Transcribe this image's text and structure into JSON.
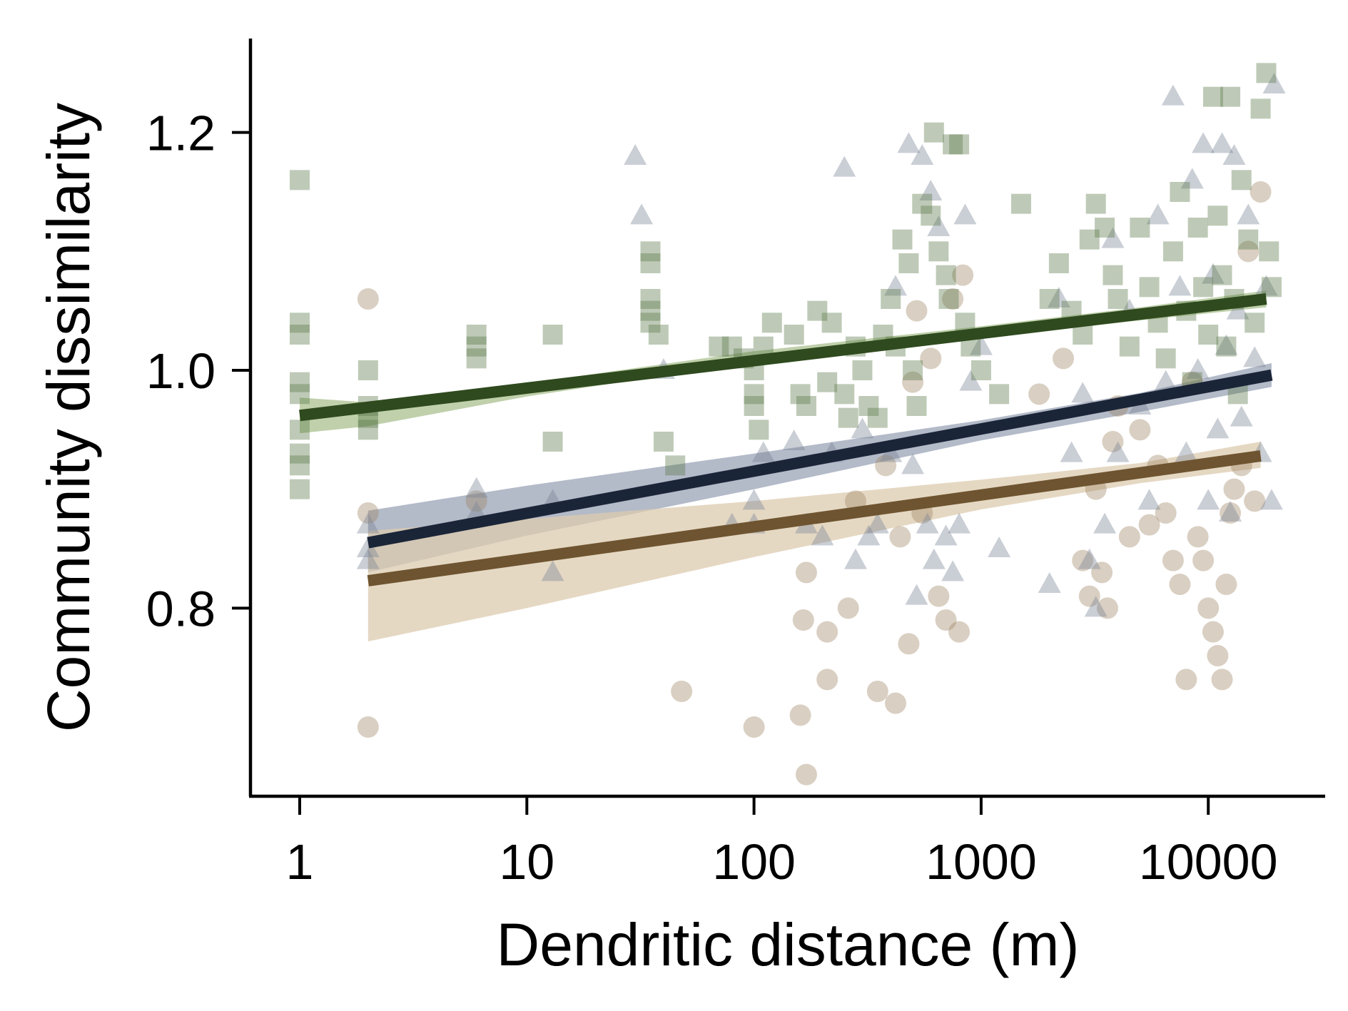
{
  "chart_data": {
    "type": "scatter",
    "title": "",
    "xlabel": "Dendritic distance (m)",
    "ylabel": "Community dissimilarity",
    "xscale": "log",
    "xlim": [
      0.65,
      35000
    ],
    "ylim": [
      0.645,
      1.28
    ],
    "xticks": [
      1,
      10,
      100,
      1000,
      10000
    ],
    "xtick_labels": [
      "1",
      "10",
      "100",
      "1000",
      "10000"
    ],
    "yticks": [
      0.8,
      1.0,
      1.2
    ],
    "ytick_labels": [
      "0.8",
      "1.0",
      "1.2"
    ],
    "grid": false,
    "legend": "none",
    "series": [
      {
        "marker": "square",
        "color": "#2f4a1e",
        "point_color": "#5c7a4a",
        "band_color": "#a9c08f",
        "fit": {
          "x": [
            1,
            18000
          ],
          "y": [
            0.962,
            1.06
          ]
        },
        "band": {
          "x": [
            1,
            2,
            10,
            100,
            1000,
            5000,
            18000
          ],
          "lower": [
            0.947,
            0.953,
            0.978,
            1.007,
            1.027,
            1.042,
            1.053
          ],
          "upper": [
            0.977,
            0.973,
            0.989,
            1.016,
            1.037,
            1.053,
            1.067
          ]
        },
        "points": [
          [
            1,
            1.16
          ],
          [
            1,
            1.04
          ],
          [
            1,
            1.03
          ],
          [
            1,
            0.99
          ],
          [
            1,
            0.98
          ],
          [
            1,
            0.95
          ],
          [
            1,
            0.93
          ],
          [
            1,
            0.92
          ],
          [
            1,
            0.9
          ],
          [
            2,
            1.0
          ],
          [
            2,
            0.97
          ],
          [
            2,
            0.96
          ],
          [
            2,
            0.95
          ],
          [
            6,
            1.03
          ],
          [
            6,
            1.02
          ],
          [
            6,
            1.01
          ],
          [
            13,
            1.03
          ],
          [
            13,
            0.94
          ],
          [
            35,
            1.1
          ],
          [
            35,
            1.09
          ],
          [
            35,
            1.06
          ],
          [
            35,
            1.05
          ],
          [
            35,
            1.04
          ],
          [
            38,
            1.03
          ],
          [
            40,
            0.94
          ],
          [
            45,
            0.92
          ],
          [
            70,
            1.02
          ],
          [
            80,
            1.02
          ],
          [
            90,
            1.01
          ],
          [
            100,
            1.0
          ],
          [
            100,
            0.98
          ],
          [
            100,
            0.97
          ],
          [
            105,
            0.95
          ],
          [
            110,
            1.02
          ],
          [
            120,
            1.04
          ],
          [
            150,
            1.03
          ],
          [
            160,
            0.98
          ],
          [
            170,
            0.97
          ],
          [
            190,
            1.05
          ],
          [
            210,
            0.99
          ],
          [
            220,
            1.04
          ],
          [
            250,
            0.98
          ],
          [
            260,
            0.96
          ],
          [
            280,
            1.02
          ],
          [
            300,
            1.0
          ],
          [
            320,
            0.97
          ],
          [
            350,
            0.96
          ],
          [
            370,
            1.03
          ],
          [
            400,
            1.06
          ],
          [
            420,
            1.02
          ],
          [
            450,
            1.11
          ],
          [
            480,
            1.09
          ],
          [
            500,
            1.0
          ],
          [
            520,
            0.97
          ],
          [
            550,
            1.14
          ],
          [
            600,
            1.13
          ],
          [
            620,
            1.2
          ],
          [
            650,
            1.1
          ],
          [
            700,
            1.08
          ],
          [
            720,
            1.06
          ],
          [
            750,
            1.19
          ],
          [
            800,
            1.19
          ],
          [
            850,
            1.04
          ],
          [
            900,
            1.02
          ],
          [
            1000,
            1.0
          ],
          [
            1200,
            0.98
          ],
          [
            1500,
            1.14
          ],
          [
            2000,
            1.06
          ],
          [
            2200,
            1.09
          ],
          [
            2500,
            1.05
          ],
          [
            2800,
            1.03
          ],
          [
            3000,
            1.11
          ],
          [
            3200,
            1.14
          ],
          [
            3500,
            1.12
          ],
          [
            3800,
            1.08
          ],
          [
            4000,
            1.06
          ],
          [
            4500,
            1.02
          ],
          [
            5000,
            1.12
          ],
          [
            5500,
            1.07
          ],
          [
            6000,
            1.04
          ],
          [
            6500,
            1.01
          ],
          [
            7000,
            1.1
          ],
          [
            7500,
            1.15
          ],
          [
            8000,
            1.05
          ],
          [
            8500,
            0.99
          ],
          [
            9000,
            1.12
          ],
          [
            9500,
            1.07
          ],
          [
            10000,
            1.03
          ],
          [
            10500,
            1.23
          ],
          [
            11000,
            1.13
          ],
          [
            11500,
            1.08
          ],
          [
            12000,
            1.02
          ],
          [
            12500,
            1.23
          ],
          [
            13000,
            1.06
          ],
          [
            13500,
            0.98
          ],
          [
            14000,
            1.16
          ],
          [
            15000,
            1.11
          ],
          [
            16000,
            1.04
          ],
          [
            17000,
            1.22
          ],
          [
            18000,
            1.25
          ],
          [
            18500,
            1.1
          ],
          [
            19000,
            1.07
          ]
        ]
      },
      {
        "marker": "triangle",
        "color": "#1b2538",
        "point_color": "#7a8496",
        "band_color": "#9aa3b5",
        "fit": {
          "x": [
            2,
            19000
          ],
          "y": [
            0.855,
            0.996
          ]
        },
        "band": {
          "x": [
            2,
            10,
            100,
            1000,
            5000,
            19000
          ],
          "lower": [
            0.83,
            0.861,
            0.9,
            0.941,
            0.965,
            0.986
          ],
          "upper": [
            0.882,
            0.903,
            0.93,
            0.958,
            0.981,
            1.006
          ]
        },
        "points": [
          [
            2,
            0.87
          ],
          [
            2,
            0.85
          ],
          [
            2,
            0.84
          ],
          [
            6,
            0.9
          ],
          [
            6,
            0.88
          ],
          [
            13,
            0.89
          ],
          [
            13,
            0.83
          ],
          [
            30,
            1.18
          ],
          [
            32,
            1.13
          ],
          [
            40,
            1.0
          ],
          [
            80,
            0.87
          ],
          [
            100,
            0.89
          ],
          [
            100,
            0.87
          ],
          [
            110,
            0.93
          ],
          [
            150,
            0.94
          ],
          [
            170,
            0.87
          ],
          [
            200,
            0.86
          ],
          [
            220,
            0.93
          ],
          [
            250,
            1.17
          ],
          [
            280,
            0.84
          ],
          [
            300,
            0.95
          ],
          [
            320,
            0.86
          ],
          [
            350,
            0.87
          ],
          [
            400,
            0.93
          ],
          [
            420,
            1.07
          ],
          [
            480,
            1.19
          ],
          [
            500,
            0.92
          ],
          [
            520,
            0.81
          ],
          [
            550,
            1.18
          ],
          [
            580,
            0.87
          ],
          [
            600,
            1.15
          ],
          [
            620,
            0.84
          ],
          [
            650,
            1.12
          ],
          [
            700,
            0.86
          ],
          [
            750,
            0.83
          ],
          [
            800,
            0.87
          ],
          [
            850,
            1.13
          ],
          [
            900,
            0.99
          ],
          [
            1000,
            1.02
          ],
          [
            1200,
            0.85
          ],
          [
            2000,
            0.82
          ],
          [
            2200,
            1.06
          ],
          [
            2500,
            0.93
          ],
          [
            2800,
            0.98
          ],
          [
            3000,
            0.84
          ],
          [
            3200,
            0.8
          ],
          [
            3500,
            0.87
          ],
          [
            3800,
            1.11
          ],
          [
            4000,
            0.93
          ],
          [
            4500,
            1.05
          ],
          [
            5000,
            0.97
          ],
          [
            5500,
            0.89
          ],
          [
            6000,
            1.13
          ],
          [
            6500,
            0.99
          ],
          [
            7000,
            1.23
          ],
          [
            7500,
            1.07
          ],
          [
            8000,
            0.93
          ],
          [
            8500,
            1.16
          ],
          [
            9000,
            1.0
          ],
          [
            9500,
            1.19
          ],
          [
            10000,
            0.89
          ],
          [
            10500,
            1.08
          ],
          [
            11000,
            0.95
          ],
          [
            11500,
            1.19
          ],
          [
            12000,
            1.02
          ],
          [
            12500,
            0.88
          ],
          [
            13000,
            1.18
          ],
          [
            13500,
            1.05
          ],
          [
            14000,
            0.96
          ],
          [
            15000,
            1.13
          ],
          [
            16000,
            1.01
          ],
          [
            17000,
            0.93
          ],
          [
            18000,
            1.07
          ],
          [
            19000,
            0.89
          ],
          [
            19500,
            1.24
          ]
        ]
      },
      {
        "marker": "circle",
        "color": "#6e5430",
        "point_color": "#a08866",
        "band_color": "#dccbaf",
        "fit": {
          "x": [
            2,
            17000
          ],
          "y": [
            0.823,
            0.928
          ]
        },
        "band": {
          "x": [
            2,
            10,
            100,
            1000,
            5000,
            17000
          ],
          "lower": [
            0.772,
            0.8,
            0.843,
            0.883,
            0.905,
            0.918
          ],
          "upper": [
            0.865,
            0.875,
            0.89,
            0.908,
            0.922,
            0.94
          ]
        },
        "points": [
          [
            2,
            1.06
          ],
          [
            2,
            0.88
          ],
          [
            2,
            0.7
          ],
          [
            6,
            0.89
          ],
          [
            48,
            0.73
          ],
          [
            100,
            0.7
          ],
          [
            160,
            0.71
          ],
          [
            165,
            0.79
          ],
          [
            170,
            0.66
          ],
          [
            170,
            0.83
          ],
          [
            210,
            0.74
          ],
          [
            210,
            0.78
          ],
          [
            260,
            0.8
          ],
          [
            280,
            0.89
          ],
          [
            350,
            0.73
          ],
          [
            380,
            0.92
          ],
          [
            420,
            0.72
          ],
          [
            440,
            0.86
          ],
          [
            480,
            0.77
          ],
          [
            500,
            0.99
          ],
          [
            520,
            1.05
          ],
          [
            550,
            0.88
          ],
          [
            600,
            1.01
          ],
          [
            650,
            0.81
          ],
          [
            700,
            0.79
          ],
          [
            750,
            1.06
          ],
          [
            800,
            0.78
          ],
          [
            830,
            1.08
          ],
          [
            1800,
            0.98
          ],
          [
            2300,
            1.01
          ],
          [
            2800,
            0.84
          ],
          [
            3000,
            0.81
          ],
          [
            3200,
            0.9
          ],
          [
            3400,
            0.83
          ],
          [
            3600,
            0.8
          ],
          [
            3800,
            0.94
          ],
          [
            4000,
            0.97
          ],
          [
            4500,
            0.86
          ],
          [
            5000,
            0.95
          ],
          [
            5500,
            0.87
          ],
          [
            6000,
            0.92
          ],
          [
            6500,
            0.88
          ],
          [
            7000,
            0.84
          ],
          [
            7500,
            0.82
          ],
          [
            8000,
            0.74
          ],
          [
            8500,
            0.99
          ],
          [
            9000,
            0.86
          ],
          [
            9500,
            0.84
          ],
          [
            10000,
            0.8
          ],
          [
            10500,
            0.78
          ],
          [
            11000,
            0.76
          ],
          [
            11500,
            0.74
          ],
          [
            12000,
            0.82
          ],
          [
            12500,
            0.88
          ],
          [
            13000,
            0.9
          ],
          [
            14000,
            0.92
          ],
          [
            15000,
            1.1
          ],
          [
            16000,
            0.89
          ],
          [
            17000,
            1.15
          ]
        ]
      }
    ]
  }
}
